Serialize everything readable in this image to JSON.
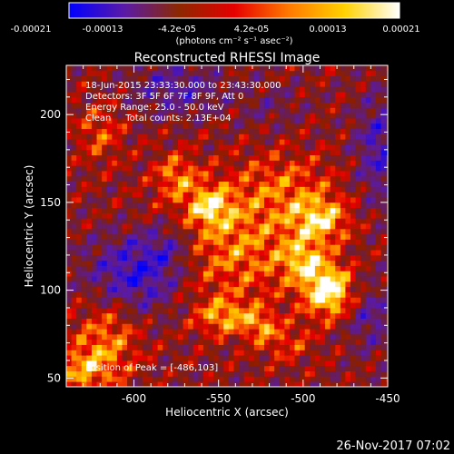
{
  "chart_data": {
    "type": "heatmap",
    "title": "Reconstructed RHESSI Image",
    "xlabel": "Heliocentric X (arcsec)",
    "ylabel": "Heliocentric Y (arcsec)",
    "xlim": [
      -640,
      -450
    ],
    "ylim": [
      45,
      228
    ],
    "x_ticks": [
      -600,
      -550,
      -500,
      -450
    ],
    "x_tick_labels": [
      "-600",
      "-550",
      "-500",
      "-450"
    ],
    "y_ticks": [
      50,
      100,
      150,
      200
    ],
    "y_tick_labels": [
      "50",
      "100",
      "150",
      "200"
    ],
    "colorbar": {
      "range": [
        -0.00021,
        0.00021
      ],
      "tick_labels": [
        "-0.00021",
        "-0.00013",
        "-4.2e-05",
        "4.2e-05",
        "0.00013",
        "0.00021"
      ],
      "unit_label": "(photons cm⁻² s⁻¹ asec⁻²)",
      "colors": [
        "#0000ff",
        "#5a1aa8",
        "#8c2800",
        "#e60000",
        "#ff7a00",
        "#ffd200",
        "#ffffff"
      ]
    },
    "peak": {
      "x": -486,
      "y": 103
    },
    "blobs": [
      {
        "x": -540,
        "y": 125,
        "sx": 30,
        "sy": 24,
        "a": 0.42
      },
      {
        "x": -510,
        "y": 160,
        "sx": 22,
        "sy": 14,
        "a": 0.28
      },
      {
        "x": -490,
        "y": 140,
        "sx": 12,
        "sy": 9,
        "a": 0.55
      },
      {
        "x": -485,
        "y": 100,
        "sx": 10,
        "sy": 10,
        "a": 0.85
      },
      {
        "x": -500,
        "y": 117,
        "sx": 9,
        "sy": 8,
        "a": 0.45
      },
      {
        "x": -555,
        "y": 148,
        "sx": 9,
        "sy": 8,
        "a": 0.5
      },
      {
        "x": -575,
        "y": 165,
        "sx": 9,
        "sy": 9,
        "a": 0.4
      },
      {
        "x": -547,
        "y": 85,
        "sx": 12,
        "sy": 7,
        "a": 0.45
      },
      {
        "x": -525,
        "y": 80,
        "sx": 7,
        "sy": 6,
        "a": 0.35
      },
      {
        "x": -615,
        "y": 75,
        "sx": 14,
        "sy": 18,
        "a": 0.4
      },
      {
        "x": -630,
        "y": 55,
        "sx": 12,
        "sy": 10,
        "a": 0.4
      },
      {
        "x": -620,
        "y": 190,
        "sx": 10,
        "sy": 12,
        "a": 0.3
      },
      {
        "x": -510,
        "y": 70,
        "sx": 12,
        "sy": 8,
        "a": 0.25
      },
      {
        "x": -600,
        "y": 108,
        "sx": 20,
        "sy": 16,
        "a": -0.55
      },
      {
        "x": -575,
        "y": 215,
        "sx": 18,
        "sy": 10,
        "a": -0.35
      },
      {
        "x": -455,
        "y": 180,
        "sx": 10,
        "sy": 22,
        "a": -0.4
      },
      {
        "x": -460,
        "y": 85,
        "sx": 10,
        "sy": 14,
        "a": -0.3
      },
      {
        "x": -580,
        "y": 125,
        "sx": 12,
        "sy": 10,
        "a": -0.3
      },
      {
        "x": -520,
        "y": 205,
        "sx": 14,
        "sy": 10,
        "a": -0.15
      }
    ]
  },
  "info": {
    "time_range": "18-Jun-2015 23:33:30.000 to 23:43:30.000",
    "detectors": "Detectors: 3F 5F 6F 7F 8F 9F, Att 0",
    "energy_range": "Energy Range: 25.0 - 50.0 keV",
    "method": "Clean     Total counts: 2.13E+04",
    "peak_label": "Position of Peak = [-486,103]",
    "footer_date": "26-Nov-2017 07:02"
  }
}
